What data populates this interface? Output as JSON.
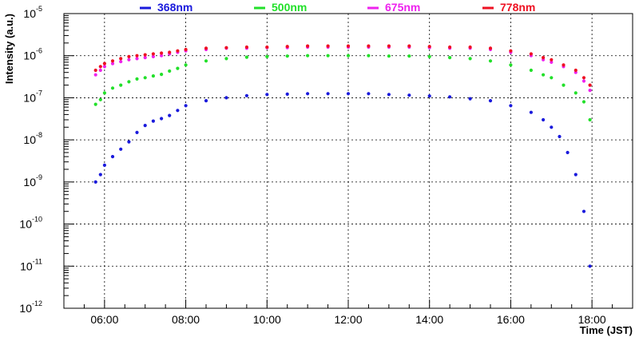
{
  "chart_data": {
    "type": "scatter",
    "title": "",
    "xlabel": "Time (JST)",
    "ylabel": "Intensity (a.u.)",
    "xlim": [
      5.0,
      19.0
    ],
    "ylim_log10": [
      -12,
      -5
    ],
    "x_ticks": [
      {
        "v": 6,
        "label": "06:00"
      },
      {
        "v": 8,
        "label": "08:00"
      },
      {
        "v": 10,
        "label": "10:00"
      },
      {
        "v": 12,
        "label": "12:00"
      },
      {
        "v": 14,
        "label": "14:00"
      },
      {
        "v": 16,
        "label": "16:00"
      },
      {
        "v": 18,
        "label": "18:00"
      }
    ],
    "y_ticks": [
      {
        "exp": -12,
        "base": "10",
        "sup": "-12"
      },
      {
        "exp": -11,
        "base": "10",
        "sup": "-11"
      },
      {
        "exp": -10,
        "base": "10",
        "sup": "-10"
      },
      {
        "exp": -9,
        "base": "10",
        "sup": "-9"
      },
      {
        "exp": -8,
        "base": "10",
        "sup": "-8"
      },
      {
        "exp": -7,
        "base": "10",
        "sup": "-7"
      },
      {
        "exp": -6,
        "base": "10",
        "sup": "-6"
      },
      {
        "exp": -5,
        "base": "10",
        "sup": "-5"
      }
    ],
    "grid": true,
    "legend_position": "top",
    "series": [
      {
        "name": "368nm",
        "color": "#1a1adc",
        "points": [
          [
            5.78,
            1e-09
          ],
          [
            5.9,
            1.5e-09
          ],
          [
            6.0,
            2.5e-09
          ],
          [
            6.2,
            4e-09
          ],
          [
            6.4,
            6e-09
          ],
          [
            6.6,
            9e-09
          ],
          [
            6.8,
            1.5e-08
          ],
          [
            7.0,
            2.2e-08
          ],
          [
            7.2,
            2.8e-08
          ],
          [
            7.4,
            3.2e-08
          ],
          [
            7.6,
            3.8e-08
          ],
          [
            7.8,
            5e-08
          ],
          [
            8.0,
            6.5e-08
          ],
          [
            8.5,
            8.5e-08
          ],
          [
            9.0,
            1e-07
          ],
          [
            9.5,
            1.12e-07
          ],
          [
            10.0,
            1.2e-07
          ],
          [
            10.5,
            1.22e-07
          ],
          [
            11.0,
            1.25e-07
          ],
          [
            11.5,
            1.25e-07
          ],
          [
            12.0,
            1.25e-07
          ],
          [
            12.5,
            1.25e-07
          ],
          [
            13.0,
            1.2e-07
          ],
          [
            13.5,
            1.15e-07
          ],
          [
            14.0,
            1.1e-07
          ],
          [
            14.5,
            1.05e-07
          ],
          [
            15.0,
            9.5e-08
          ],
          [
            15.5,
            8.5e-08
          ],
          [
            16.0,
            6.5e-08
          ],
          [
            16.5,
            4.5e-08
          ],
          [
            16.8,
            3e-08
          ],
          [
            17.0,
            2e-08
          ],
          [
            17.2,
            1.2e-08
          ],
          [
            17.4,
            5e-09
          ],
          [
            17.6,
            1.5e-09
          ],
          [
            17.8,
            2e-10
          ],
          [
            17.95,
            1e-11
          ]
        ]
      },
      {
        "name": "500nm",
        "color": "#22e02a",
        "points": [
          [
            5.78,
            7e-08
          ],
          [
            5.9,
            9e-08
          ],
          [
            6.0,
            1.3e-07
          ],
          [
            6.2,
            1.7e-07
          ],
          [
            6.4,
            2e-07
          ],
          [
            6.6,
            2.4e-07
          ],
          [
            6.8,
            2.8e-07
          ],
          [
            7.0,
            3e-07
          ],
          [
            7.2,
            3.3e-07
          ],
          [
            7.4,
            3.6e-07
          ],
          [
            7.6,
            4.3e-07
          ],
          [
            7.8,
            5e-07
          ],
          [
            8.0,
            6e-07
          ],
          [
            8.5,
            7.5e-07
          ],
          [
            9.0,
            8.5e-07
          ],
          [
            9.5,
            9.2e-07
          ],
          [
            10.0,
            9.5e-07
          ],
          [
            10.5,
            9.8e-07
          ],
          [
            11.0,
            1e-06
          ],
          [
            11.5,
            1e-06
          ],
          [
            12.0,
            1e-06
          ],
          [
            12.5,
            1e-06
          ],
          [
            13.0,
            9.8e-07
          ],
          [
            13.5,
            9.8e-07
          ],
          [
            14.0,
            9.5e-07
          ],
          [
            14.5,
            9e-07
          ],
          [
            15.0,
            8.5e-07
          ],
          [
            15.5,
            7.5e-07
          ],
          [
            16.0,
            6e-07
          ],
          [
            16.5,
            4.5e-07
          ],
          [
            16.8,
            3.5e-07
          ],
          [
            17.0,
            3e-07
          ],
          [
            17.3,
            2e-07
          ],
          [
            17.6,
            1.3e-07
          ],
          [
            17.8,
            8e-08
          ],
          [
            17.95,
            3e-08
          ]
        ]
      },
      {
        "name": "675nm",
        "color": "#ee22ee",
        "points": [
          [
            5.78,
            3.5e-07
          ],
          [
            5.9,
            4.5e-07
          ],
          [
            6.0,
            5.5e-07
          ],
          [
            6.2,
            6.5e-07
          ],
          [
            6.4,
            7.2e-07
          ],
          [
            6.6,
            8e-07
          ],
          [
            6.8,
            8.5e-07
          ],
          [
            7.0,
            9e-07
          ],
          [
            7.2,
            9.5e-07
          ],
          [
            7.4,
            1e-06
          ],
          [
            7.6,
            1.1e-06
          ],
          [
            7.8,
            1.2e-06
          ],
          [
            8.0,
            1.3e-06
          ],
          [
            8.5,
            1.4e-06
          ],
          [
            9.0,
            1.5e-06
          ],
          [
            9.5,
            1.5e-06
          ],
          [
            10.0,
            1.55e-06
          ],
          [
            10.5,
            1.55e-06
          ],
          [
            11.0,
            1.6e-06
          ],
          [
            11.5,
            1.6e-06
          ],
          [
            12.0,
            1.6e-06
          ],
          [
            12.5,
            1.6e-06
          ],
          [
            13.0,
            1.6e-06
          ],
          [
            13.5,
            1.6e-06
          ],
          [
            14.0,
            1.55e-06
          ],
          [
            14.5,
            1.5e-06
          ],
          [
            15.0,
            1.5e-06
          ],
          [
            15.5,
            1.4e-06
          ],
          [
            16.0,
            1.2e-06
          ],
          [
            16.5,
            1e-06
          ],
          [
            16.8,
            8e-07
          ],
          [
            17.0,
            7e-07
          ],
          [
            17.3,
            5.5e-07
          ],
          [
            17.6,
            4e-07
          ],
          [
            17.8,
            2.5e-07
          ],
          [
            17.95,
            1.5e-07
          ]
        ]
      },
      {
        "name": "778nm",
        "color": "#ee1122",
        "points": [
          [
            5.78,
            4.5e-07
          ],
          [
            5.9,
            5.5e-07
          ],
          [
            6.0,
            6.5e-07
          ],
          [
            6.2,
            7.5e-07
          ],
          [
            6.4,
            8.5e-07
          ],
          [
            6.6,
            9.5e-07
          ],
          [
            6.8,
            1e-06
          ],
          [
            7.0,
            1.05e-06
          ],
          [
            7.2,
            1.1e-06
          ],
          [
            7.4,
            1.15e-06
          ],
          [
            7.6,
            1.2e-06
          ],
          [
            7.8,
            1.3e-06
          ],
          [
            8.0,
            1.4e-06
          ],
          [
            8.5,
            1.5e-06
          ],
          [
            9.0,
            1.55e-06
          ],
          [
            9.5,
            1.6e-06
          ],
          [
            10.0,
            1.6e-06
          ],
          [
            10.5,
            1.65e-06
          ],
          [
            11.0,
            1.7e-06
          ],
          [
            11.5,
            1.7e-06
          ],
          [
            12.0,
            1.7e-06
          ],
          [
            12.5,
            1.7e-06
          ],
          [
            13.0,
            1.7e-06
          ],
          [
            13.5,
            1.7e-06
          ],
          [
            14.0,
            1.65e-06
          ],
          [
            14.5,
            1.6e-06
          ],
          [
            15.0,
            1.6e-06
          ],
          [
            15.5,
            1.5e-06
          ],
          [
            16.0,
            1.3e-06
          ],
          [
            16.5,
            1.1e-06
          ],
          [
            16.8,
            9e-07
          ],
          [
            17.0,
            8e-07
          ],
          [
            17.3,
            6e-07
          ],
          [
            17.6,
            4.5e-07
          ],
          [
            17.8,
            3e-07
          ],
          [
            17.95,
            2e-07
          ]
        ]
      }
    ]
  }
}
